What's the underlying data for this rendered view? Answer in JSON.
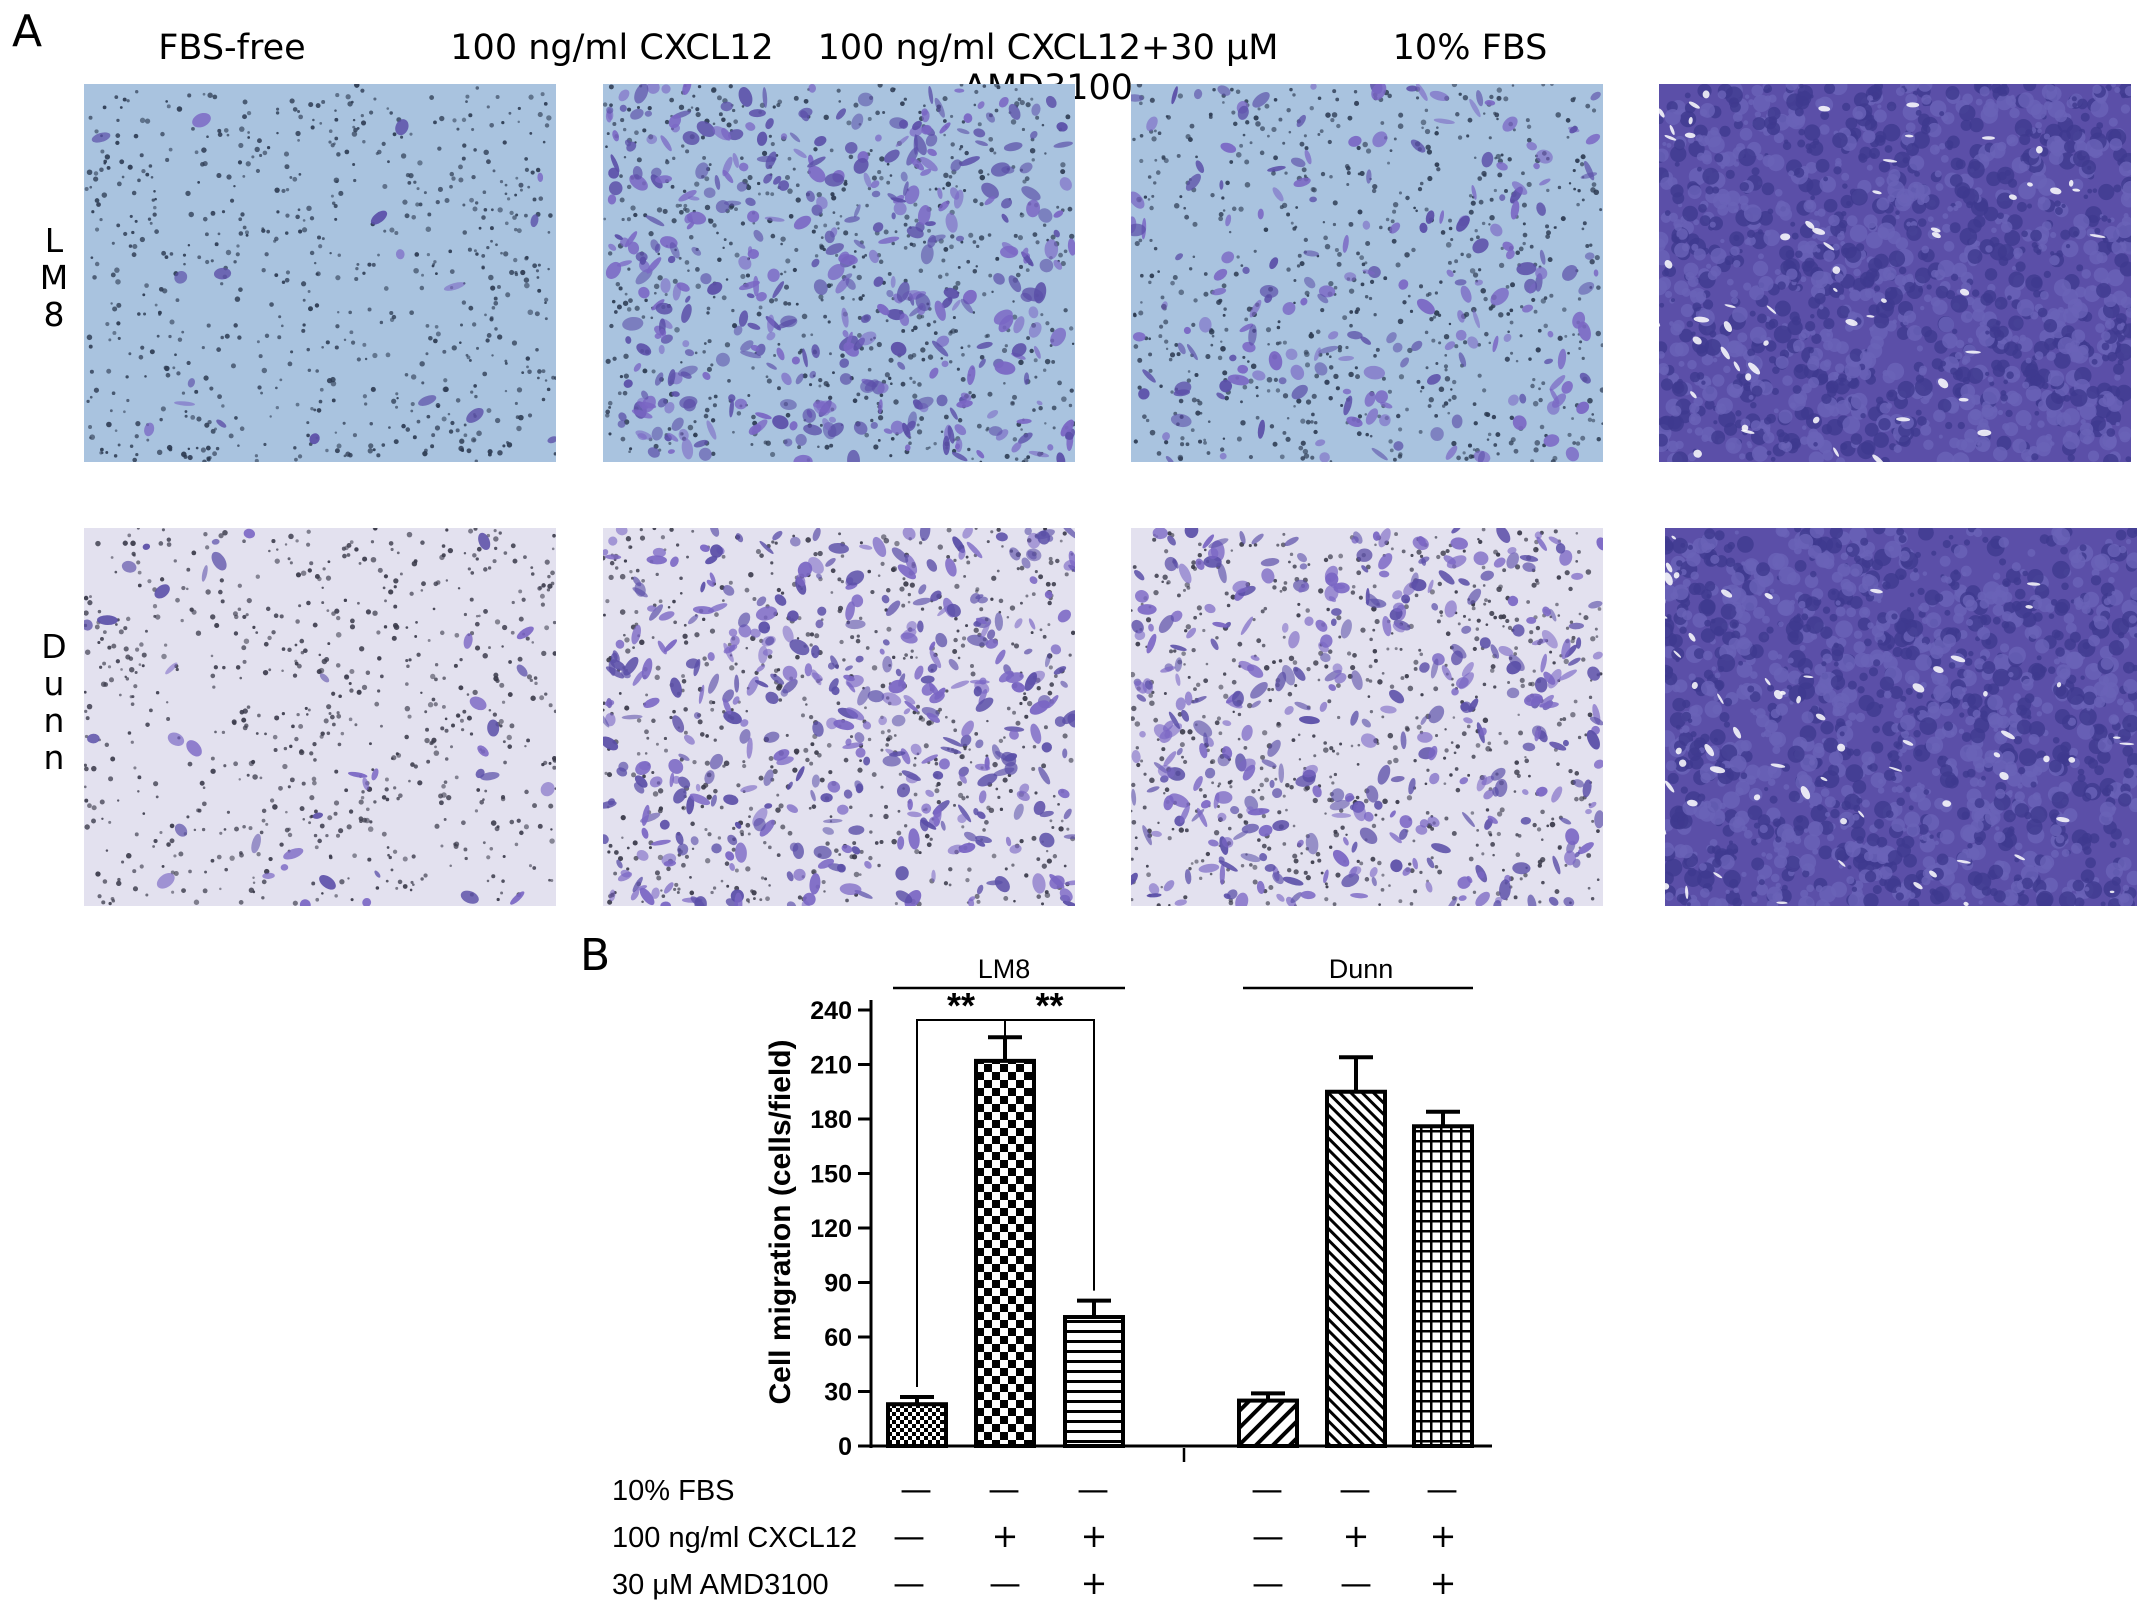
{
  "panels": {
    "a_label": "A",
    "b_label": "B"
  },
  "micrographs": {
    "columns": [
      "FBS-free",
      "100 ng/ml CXCL12",
      "100 ng/ml CXCL12+30 μM AMD3100",
      "10% FBS"
    ],
    "rows": [
      {
        "label": "LM8",
        "letters": [
          "L",
          "M",
          "8"
        ]
      },
      {
        "label": "Dunn",
        "letters": [
          "D",
          "u",
          "n",
          "n"
        ]
      }
    ],
    "colors": {
      "lm8_background": "#a9c3df",
      "dunn_background": "#e3e1ef",
      "stain": "#5b4fa8",
      "stain_dark": "#3e3a8e"
    }
  },
  "chart_data": {
    "type": "bar",
    "ylabel": "Cell migration (cells/field)",
    "ylim": [
      0,
      240
    ],
    "yticks": [
      0,
      30,
      60,
      90,
      120,
      150,
      180,
      210,
      240
    ],
    "groups": [
      {
        "name": "LM8",
        "bars": [
          {
            "value": 23,
            "error": 4,
            "pattern": "fine-checker"
          },
          {
            "value": 212,
            "error": 13,
            "pattern": "checker"
          },
          {
            "value": 71,
            "error": 9,
            "pattern": "horizontal-lines"
          }
        ]
      },
      {
        "name": "Dunn",
        "bars": [
          {
            "value": 25,
            "error": 4,
            "pattern": "diagonal-sparse"
          },
          {
            "value": 195,
            "error": 19,
            "pattern": "diagonal-dense"
          },
          {
            "value": 176,
            "error": 8,
            "pattern": "grid"
          }
        ]
      }
    ],
    "significance": [
      {
        "group": "LM8",
        "from_bar": 0,
        "to_bar": 1,
        "label": "**"
      },
      {
        "group": "LM8",
        "from_bar": 1,
        "to_bar": 2,
        "label": "**"
      }
    ],
    "condition_rows": [
      {
        "label": "10% FBS",
        "signs": [
          "—",
          "—",
          "—",
          "—",
          "—",
          "—"
        ]
      },
      {
        "label": "100  ng/ml CXCL12",
        "signs": [
          "—",
          "+",
          "+",
          "—",
          "+",
          "+"
        ]
      },
      {
        "label": "30  μM AMD3100",
        "signs": [
          "—",
          "—",
          "+",
          "—",
          "—",
          "+"
        ]
      }
    ]
  }
}
